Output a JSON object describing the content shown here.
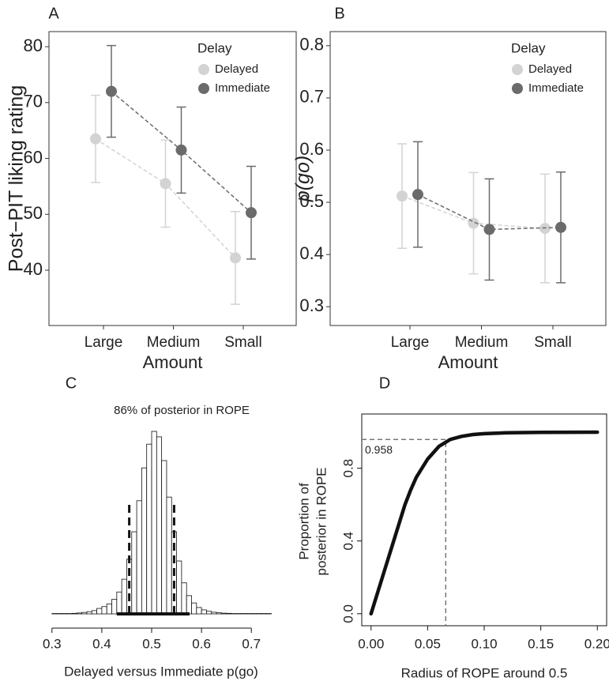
{
  "chart_data": [
    {
      "type": "line",
      "title": "A",
      "ylabel": "Post−PIT liking rating",
      "xlabel": "Amount",
      "legend_title": "Delay",
      "legend": "top-right",
      "categories": [
        "Large",
        "Medium",
        "Small"
      ],
      "series": [
        {
          "name": "Delayed",
          "color": "#d3d3d3",
          "values": [
            63.5,
            55.5,
            42.2
          ],
          "errors": [
            7.8,
            7.8,
            8.3
          ]
        },
        {
          "name": "Immediate",
          "color": "#6b6b6b",
          "values": [
            72,
            61.5,
            50.3
          ],
          "errors": [
            8.2,
            7.7,
            8.3
          ]
        }
      ],
      "ylim": [
        30.1,
        82.7
      ],
      "yticks": [
        40,
        50,
        60,
        70,
        80
      ]
    },
    {
      "type": "line",
      "title": "B",
      "ylabel": "p(go)",
      "xlabel": "Amount",
      "legend_title": "Delay",
      "legend": "top-right",
      "categories": [
        "Large",
        "Medium",
        "Small"
      ],
      "series": [
        {
          "name": "Delayed",
          "color": "#d3d3d3",
          "values": [
            0.512,
            0.46,
            0.45
          ],
          "errors": [
            0.1,
            0.097,
            0.104
          ]
        },
        {
          "name": "Immediate",
          "color": "#6b6b6b",
          "values": [
            0.515,
            0.448,
            0.452
          ],
          "errors": [
            0.101,
            0.097,
            0.106
          ]
        }
      ],
      "ylim": [
        0.264,
        0.827
      ],
      "yticks": [
        0.3,
        0.4,
        0.5,
        0.6,
        0.7,
        0.8
      ]
    },
    {
      "type": "histogram",
      "title": "C",
      "subtitle": "86% of posterior in ROPE",
      "xlabel": "Delayed versus Immediate p(go)",
      "bins": [
        0.3,
        0.31,
        0.32,
        0.33,
        0.34,
        0.35,
        0.36,
        0.37,
        0.38,
        0.39,
        0.4,
        0.41,
        0.42,
        0.43,
        0.44,
        0.45,
        0.46,
        0.47,
        0.48,
        0.49,
        0.5,
        0.51,
        0.52,
        0.53,
        0.54,
        0.55,
        0.56,
        0.57,
        0.58,
        0.59,
        0.6,
        0.61,
        0.62,
        0.63,
        0.64,
        0.65,
        0.66,
        0.67,
        0.68,
        0.69,
        0.7,
        0.71,
        0.72,
        0.73,
        0.74
      ],
      "counts": [
        0.002,
        0.002,
        0.002,
        0.002,
        0.003,
        0.005,
        0.008,
        0.012,
        0.018,
        0.03,
        0.04,
        0.055,
        0.08,
        0.12,
        0.19,
        0.3,
        0.45,
        0.62,
        0.8,
        0.93,
        1.0,
        0.97,
        0.84,
        0.64,
        0.45,
        0.29,
        0.17,
        0.1,
        0.06,
        0.035,
        0.022,
        0.014,
        0.009,
        0.006,
        0.004,
        0.003,
        0.002,
        0.002,
        0.002,
        0.002,
        0.002,
        0.002,
        0.002,
        0.002
      ],
      "rope": [
        0.455,
        0.545
      ],
      "hdi": [
        0.43,
        0.576
      ],
      "xlim": [
        0.294,
        0.744
      ],
      "ylim": [
        0,
        1
      ],
      "xticks": [
        0.3,
        0.4,
        0.5,
        0.6,
        0.7
      ]
    },
    {
      "type": "line",
      "title": "D",
      "ylabel": [
        "Proportion of",
        "posterior in ROPE"
      ],
      "xlabel": "Radius of ROPE around 0.5",
      "x": [
        0,
        0.005,
        0.01,
        0.015,
        0.02,
        0.025,
        0.03,
        0.035,
        0.04,
        0.05,
        0.06,
        0.07,
        0.08,
        0.09,
        0.1,
        0.12,
        0.15,
        0.2
      ],
      "values": [
        0,
        0.1,
        0.2,
        0.3,
        0.4,
        0.5,
        0.6,
        0.68,
        0.75,
        0.85,
        0.92,
        0.958,
        0.975,
        0.985,
        0.99,
        0.995,
        0.997,
        0.998
      ],
      "color": "#111111",
      "reference": {
        "x": 0.066,
        "y": 0.958
      },
      "xlim": [
        -0.0082,
        0.2082
      ],
      "ylim": [
        -0.066,
        1.098
      ],
      "xticks": [
        {
          "value": 0,
          "label": "0.00"
        },
        {
          "value": 0.05,
          "label": "0.05"
        },
        {
          "value": 0.1,
          "label": "0.10"
        },
        {
          "value": 0.15,
          "label": "0.15"
        },
        {
          "value": 0.2,
          "label": "0.20"
        }
      ],
      "yticks": [
        {
          "value": 0,
          "label": "0.0"
        },
        {
          "value": 0.4,
          "label": "0.4"
        },
        {
          "value": 0.8,
          "label": "0.8"
        }
      ]
    }
  ]
}
